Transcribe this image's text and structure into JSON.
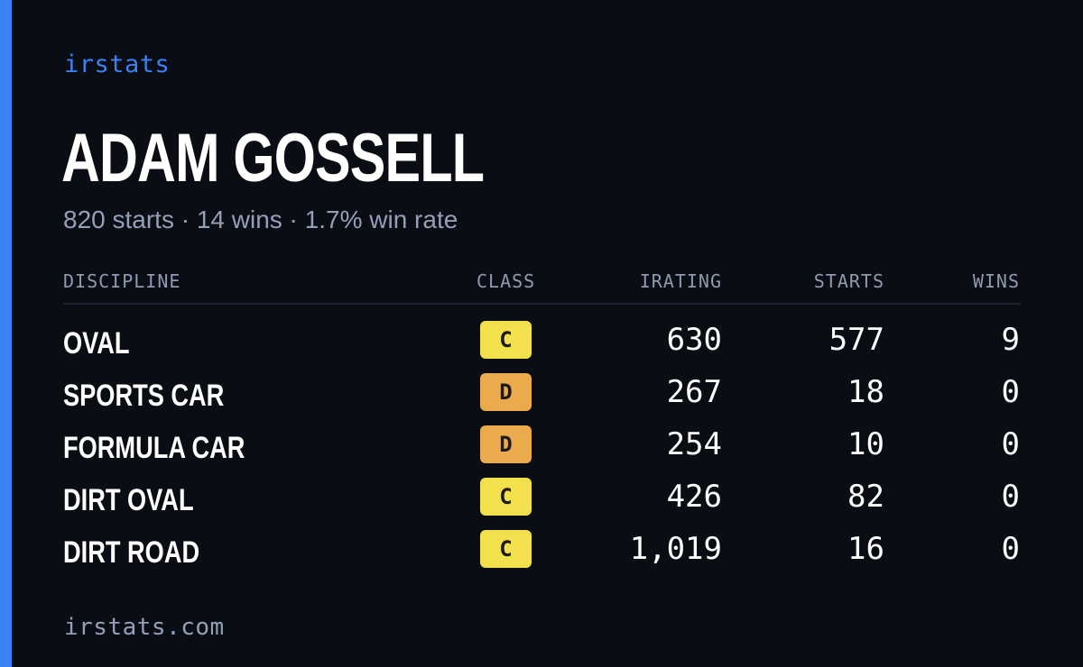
{
  "brand": "irstats",
  "driver": {
    "name": "ADAM GOSSELL",
    "summary": "820 starts · 14 wins · 1.7% win rate"
  },
  "table": {
    "headers": {
      "discipline": "DISCIPLINE",
      "class": "CLASS",
      "irating": "IRATING",
      "starts": "STARTS",
      "wins": "WINS"
    },
    "rows": [
      {
        "discipline": "OVAL",
        "class": "C",
        "class_color": "#f2e14c",
        "irating": "630",
        "starts": "577",
        "wins": "9"
      },
      {
        "discipline": "SPORTS CAR",
        "class": "D",
        "class_color": "#ebab4d",
        "irating": "267",
        "starts": "18",
        "wins": "0"
      },
      {
        "discipline": "FORMULA CAR",
        "class": "D",
        "class_color": "#ebab4d",
        "irating": "254",
        "starts": "10",
        "wins": "0"
      },
      {
        "discipline": "DIRT OVAL",
        "class": "C",
        "class_color": "#f2e14c",
        "irating": "426",
        "starts": "82",
        "wins": "0"
      },
      {
        "discipline": "DIRT ROAD",
        "class": "C",
        "class_color": "#f2e14c",
        "irating": "1,019",
        "starts": "16",
        "wins": "0"
      }
    ]
  },
  "footer": "irstats.com",
  "colors": {
    "background": "#0b0d14",
    "accent": "#3b82f6",
    "muted_text": "#94a0b8",
    "class_c": "#f2e14c",
    "class_d": "#ebab4d"
  }
}
